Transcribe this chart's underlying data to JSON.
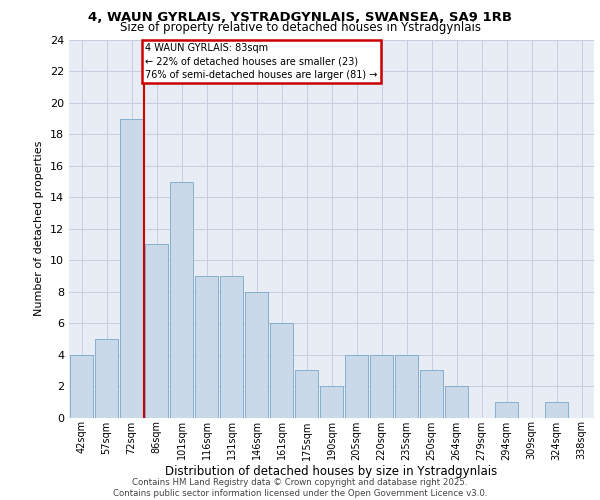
{
  "title1": "4, WAUN GYRLAIS, YSTRADGYNLAIS, SWANSEA, SA9 1RB",
  "title2": "Size of property relative to detached houses in Ystradgynlais",
  "xlabel": "Distribution of detached houses by size in Ystradgynlais",
  "ylabel": "Number of detached properties",
  "bar_labels": [
    "42sqm",
    "57sqm",
    "72sqm",
    "86sqm",
    "101sqm",
    "116sqm",
    "131sqm",
    "146sqm",
    "161sqm",
    "175sqm",
    "190sqm",
    "205sqm",
    "220sqm",
    "235sqm",
    "250sqm",
    "264sqm",
    "279sqm",
    "294sqm",
    "309sqm",
    "324sqm",
    "338sqm"
  ],
  "bar_values": [
    4,
    5,
    19,
    11,
    15,
    9,
    9,
    8,
    6,
    3,
    2,
    4,
    4,
    4,
    3,
    2,
    0,
    1,
    0,
    1,
    0
  ],
  "bar_color": "#c9d9ea",
  "bar_edge_color": "#7aa8c8",
  "property_bin_index": 3,
  "annotation_text": "4 WAUN GYRLAIS: 83sqm\n← 22% of detached houses are smaller (23)\n76% of semi-detached houses are larger (81) →",
  "vline_color": "#cc0000",
  "annotation_box_color": "#ffffff",
  "annotation_box_edge": "#cc0000",
  "grid_color": "#c5cfe0",
  "background_color": "#e8edf5",
  "footer_text": "Contains HM Land Registry data © Crown copyright and database right 2025.\nContains public sector information licensed under the Open Government Licence v3.0.",
  "ylim": [
    0,
    24
  ],
  "yticks": [
    0,
    2,
    4,
    6,
    8,
    10,
    12,
    14,
    16,
    18,
    20,
    22,
    24
  ]
}
